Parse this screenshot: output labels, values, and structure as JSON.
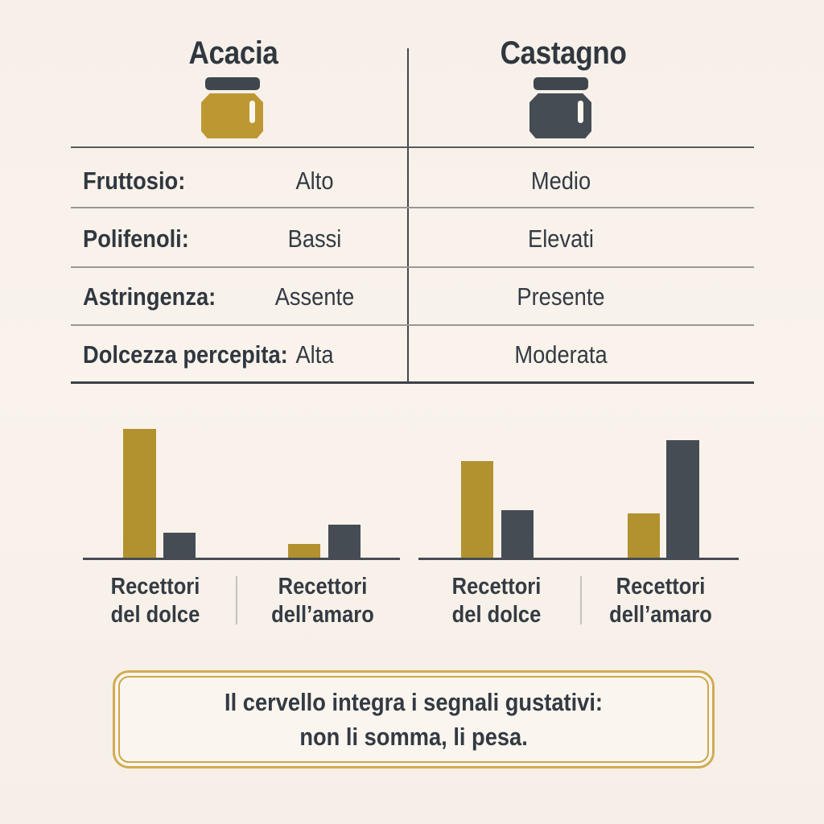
{
  "colors": {
    "background": "#f8f2ea",
    "text": "#30373f",
    "gold_bar": "#b2912f",
    "gold_jar": "#bd9832",
    "dark_slate": "#454c54",
    "jar_lid": "#3f464e",
    "note_border_gold": "#d2ab52"
  },
  "header": {
    "columns": [
      {
        "label": "Acacia",
        "jar_icon": "honey-jar-icon",
        "jar_color": "#bd9832"
      },
      {
        "label": "Castagno",
        "jar_icon": "honey-jar-icon",
        "jar_color": "#454c54"
      }
    ]
  },
  "table": {
    "rows": [
      {
        "label": "Fruttosio:",
        "acacia": "Alto",
        "castagno": "Medio"
      },
      {
        "label": "Polifenoli:",
        "acacia": "Bassi",
        "castagno": "Elevati"
      },
      {
        "label": "Astringenza:",
        "acacia": "Assente",
        "castagno": "Presente"
      },
      {
        "label": "Dolcezza percepita:",
        "acacia": "Alta",
        "castagno": "Moderata"
      }
    ]
  },
  "chart_data": [
    {
      "type": "bar",
      "title": "Acacia",
      "categories": [
        "Recettori del dolce",
        "Recettori dell’amaro"
      ],
      "series": [
        {
          "name": "gold",
          "color": "#b2912f",
          "values": [
            100,
            11
          ]
        },
        {
          "name": "dark-gray",
          "color": "#454c54",
          "values": [
            20,
            26
          ]
        }
      ],
      "ylim": [
        0,
        100
      ],
      "grid": false,
      "legend": "none",
      "axis_labels": "none"
    },
    {
      "type": "bar",
      "title": "Castagno",
      "categories": [
        "Recettori del dolce",
        "Recettori dell’amaro"
      ],
      "series": [
        {
          "name": "gold",
          "color": "#b2912f",
          "values": [
            75,
            35
          ]
        },
        {
          "name": "dark-gray",
          "color": "#454c54",
          "values": [
            37,
            91
          ]
        }
      ],
      "ylim": [
        0,
        100
      ],
      "grid": false,
      "legend": "none",
      "axis_labels": "none"
    }
  ],
  "note": {
    "line1": "Il cervello integra i segnali gustativi:",
    "line2": "non li somma, li pesa."
  }
}
